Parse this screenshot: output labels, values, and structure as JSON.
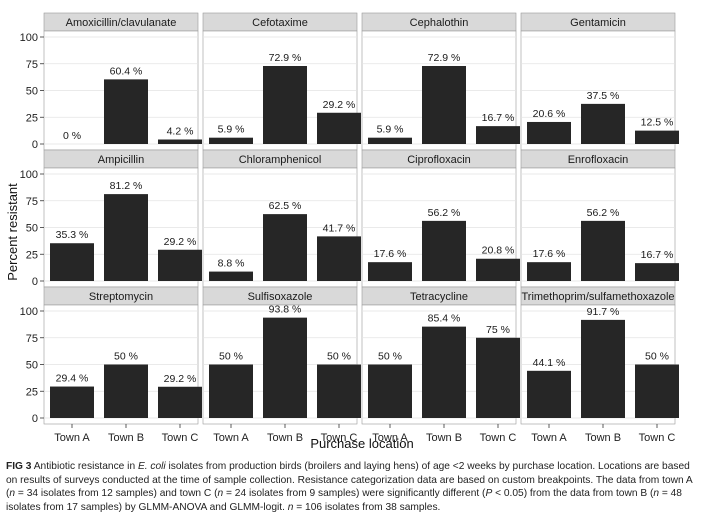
{
  "chart_data": {
    "type": "bar",
    "ylabel": "Percent resistant",
    "xlabel": "Purchase location",
    "ylim": [
      0,
      100
    ],
    "yticks": [
      "0",
      "25",
      "50",
      "75",
      "100"
    ],
    "categories": [
      "Town A",
      "Town B",
      "Town C"
    ],
    "bar_color": "#262626",
    "strip_color": "#d9d9d9",
    "panel_bg": "#ffffff",
    "panels": [
      {
        "title": "Amoxicillin/clavulanate",
        "values": [
          0,
          60.4,
          4.2
        ],
        "labels": [
          "0 %",
          "60.4 %",
          "4.2 %"
        ]
      },
      {
        "title": "Cefotaxime",
        "values": [
          5.9,
          72.9,
          29.2
        ],
        "labels": [
          "5.9 %",
          "72.9 %",
          "29.2 %"
        ]
      },
      {
        "title": "Cephalothin",
        "values": [
          5.9,
          72.9,
          16.7
        ],
        "labels": [
          "5.9 %",
          "72.9 %",
          "16.7 %"
        ]
      },
      {
        "title": "Gentamicin",
        "values": [
          20.6,
          37.5,
          12.5
        ],
        "labels": [
          "20.6 %",
          "37.5 %",
          "12.5 %"
        ]
      },
      {
        "title": "Ampicillin",
        "values": [
          35.3,
          81.2,
          29.2
        ],
        "labels": [
          "35.3 %",
          "81.2 %",
          "29.2 %"
        ]
      },
      {
        "title": "Chloramphenicol",
        "values": [
          8.8,
          62.5,
          41.7
        ],
        "labels": [
          "8.8 %",
          "62.5 %",
          "41.7 %"
        ]
      },
      {
        "title": "Ciprofloxacin",
        "values": [
          17.6,
          56.2,
          20.8
        ],
        "labels": [
          "17.6 %",
          "56.2 %",
          "20.8 %"
        ]
      },
      {
        "title": "Enrofloxacin",
        "values": [
          17.6,
          56.2,
          16.7
        ],
        "labels": [
          "17.6 %",
          "56.2 %",
          "16.7 %"
        ]
      },
      {
        "title": "Streptomycin",
        "values": [
          29.4,
          50,
          29.2
        ],
        "labels": [
          "29.4 %",
          "50 %",
          "29.2 %"
        ]
      },
      {
        "title": "Sulfisoxazole",
        "values": [
          50,
          93.8,
          50
        ],
        "labels": [
          "50 %",
          "93.8 %",
          "50 %"
        ]
      },
      {
        "title": "Tetracycline",
        "values": [
          50,
          85.4,
          75
        ],
        "labels": [
          "50 %",
          "85.4 %",
          "75 %"
        ]
      },
      {
        "title": "Trimethoprim/sulfamethoxazole",
        "values": [
          44.1,
          91.7,
          50
        ],
        "labels": [
          "44.1 %",
          "91.7 %",
          "50 %"
        ]
      }
    ]
  },
  "caption": {
    "label": "FIG 3",
    "part1": " Antibiotic resistance in ",
    "organism": "E. coli",
    "part2": " isolates from production birds (broilers and laying hens) of age <2 weeks by purchase location. Locations are based on results of surveys conducted at the time of sample collection. Resistance categorization data are based on custom breakpoints. The data from town A (",
    "n1": "n",
    "part3": " = 34 isolates from 12 samples) and town C (",
    "n2": "n",
    "part4": " = 24 isolates from 9 samples) were significantly different (",
    "p": "P",
    "part5": " < 0.05) from the data from town B (",
    "n3": "n",
    "part6": " = 48 isolates from 17 samples) by GLMM-ANOVA and GLMM-logit. ",
    "n4": "n",
    "part7": " = 106 isolates from 38 samples."
  }
}
